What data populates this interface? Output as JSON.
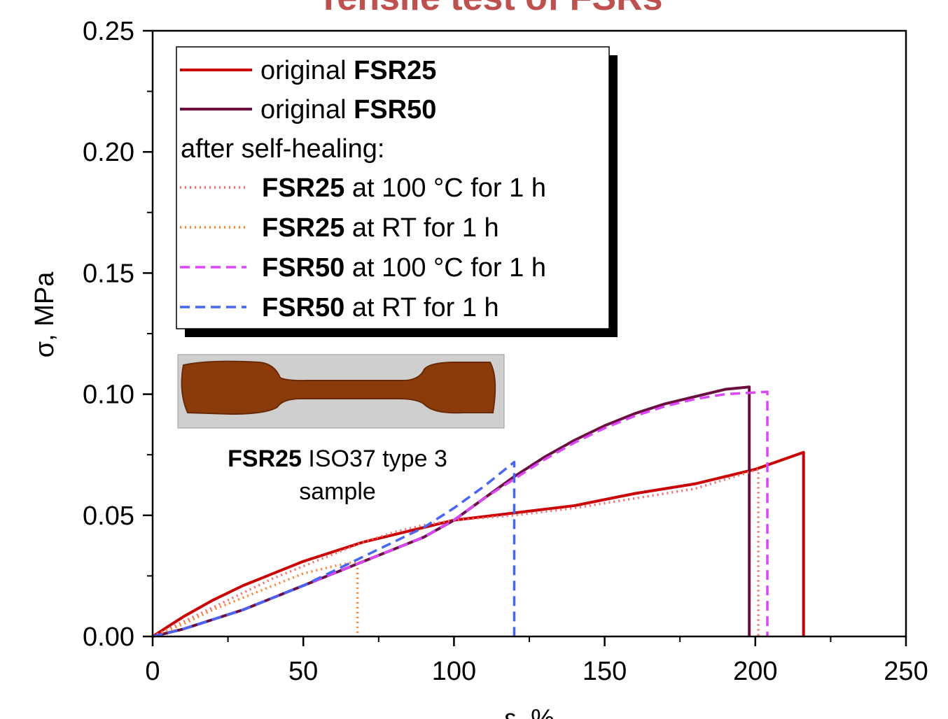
{
  "chart_data": {
    "type": "line",
    "title": "Tensile test of FSRs",
    "xlabel": "ε, %",
    "ylabel": "σ, MPa",
    "xlim": [
      0,
      250
    ],
    "ylim": [
      0,
      0.25
    ],
    "xticks": [
      0,
      50,
      100,
      150,
      200,
      250
    ],
    "yticks": [
      {
        "value": 0,
        "label": "0.00"
      },
      {
        "value": 0.05,
        "label": "0.05"
      },
      {
        "value": 0.1,
        "label": "0.10"
      },
      {
        "value": 0.15,
        "label": "0.15"
      },
      {
        "value": 0.2,
        "label": "0.20"
      },
      {
        "value": 0.25,
        "label": "0.25"
      }
    ],
    "legend_heading": "after self-healing:",
    "annotation": [
      "FSR25 ISO37 type 3",
      "sample"
    ],
    "series": [
      {
        "name": "original FSR25",
        "color": "#cc0000",
        "style": "solid",
        "x": [
          0,
          10,
          20,
          30,
          40,
          50,
          60,
          70,
          80,
          90,
          100,
          120,
          140,
          160,
          180,
          200,
          216,
          216
        ],
        "values": [
          0,
          0.008,
          0.015,
          0.021,
          0.026,
          0.031,
          0.035,
          0.039,
          0.042,
          0.045,
          0.048,
          0.051,
          0.054,
          0.059,
          0.063,
          0.069,
          0.076,
          0
        ]
      },
      {
        "name": "original FSR50",
        "color": "#6b0f3f",
        "style": "solid",
        "x": [
          0,
          10,
          20,
          30,
          40,
          50,
          60,
          70,
          80,
          90,
          100,
          110,
          120,
          130,
          140,
          150,
          160,
          170,
          180,
          190,
          198,
          198
        ],
        "values": [
          0,
          0.003,
          0.007,
          0.011,
          0.016,
          0.021,
          0.026,
          0.031,
          0.036,
          0.041,
          0.048,
          0.057,
          0.066,
          0.074,
          0.081,
          0.087,
          0.092,
          0.096,
          0.099,
          0.102,
          0.103,
          0
        ]
      },
      {
        "name": "FSR25 at 100 °C for  1 h",
        "color": "#ff6666",
        "style": "dotted",
        "x": [
          0,
          10,
          20,
          30,
          40,
          50,
          60,
          70,
          80,
          90,
          100,
          120,
          140,
          160,
          180,
          201,
          201
        ],
        "values": [
          0,
          0.006,
          0.012,
          0.018,
          0.024,
          0.029,
          0.034,
          0.039,
          0.043,
          0.046,
          0.048,
          0.05,
          0.053,
          0.057,
          0.061,
          0.069,
          0
        ]
      },
      {
        "name": "FSR25 at RT for 1 h",
        "color": "#ff7f27",
        "style": "dotted",
        "x": [
          0,
          10,
          20,
          30,
          40,
          50,
          60,
          68,
          68
        ],
        "values": [
          0,
          0.005,
          0.011,
          0.016,
          0.021,
          0.026,
          0.029,
          0.031,
          0
        ]
      },
      {
        "name": "FSR50 at 100 °C for  1 h",
        "color": "#dd44ff",
        "style": "dashed",
        "x": [
          0,
          10,
          20,
          30,
          40,
          50,
          60,
          70,
          80,
          90,
          100,
          110,
          120,
          130,
          140,
          150,
          160,
          170,
          180,
          190,
          204,
          204
        ],
        "values": [
          0,
          0.003,
          0.007,
          0.011,
          0.016,
          0.021,
          0.026,
          0.031,
          0.036,
          0.041,
          0.048,
          0.057,
          0.065,
          0.073,
          0.08,
          0.086,
          0.091,
          0.095,
          0.098,
          0.1,
          0.101,
          0
        ]
      },
      {
        "name": "FSR50 at RT for 1 h",
        "color": "#4466ff",
        "style": "dashed",
        "x": [
          0,
          10,
          20,
          30,
          40,
          50,
          60,
          70,
          80,
          90,
          100,
          110,
          120,
          120
        ],
        "values": [
          0,
          0.003,
          0.007,
          0.011,
          0.016,
          0.021,
          0.027,
          0.033,
          0.039,
          0.045,
          0.053,
          0.062,
          0.072,
          0
        ]
      }
    ]
  }
}
